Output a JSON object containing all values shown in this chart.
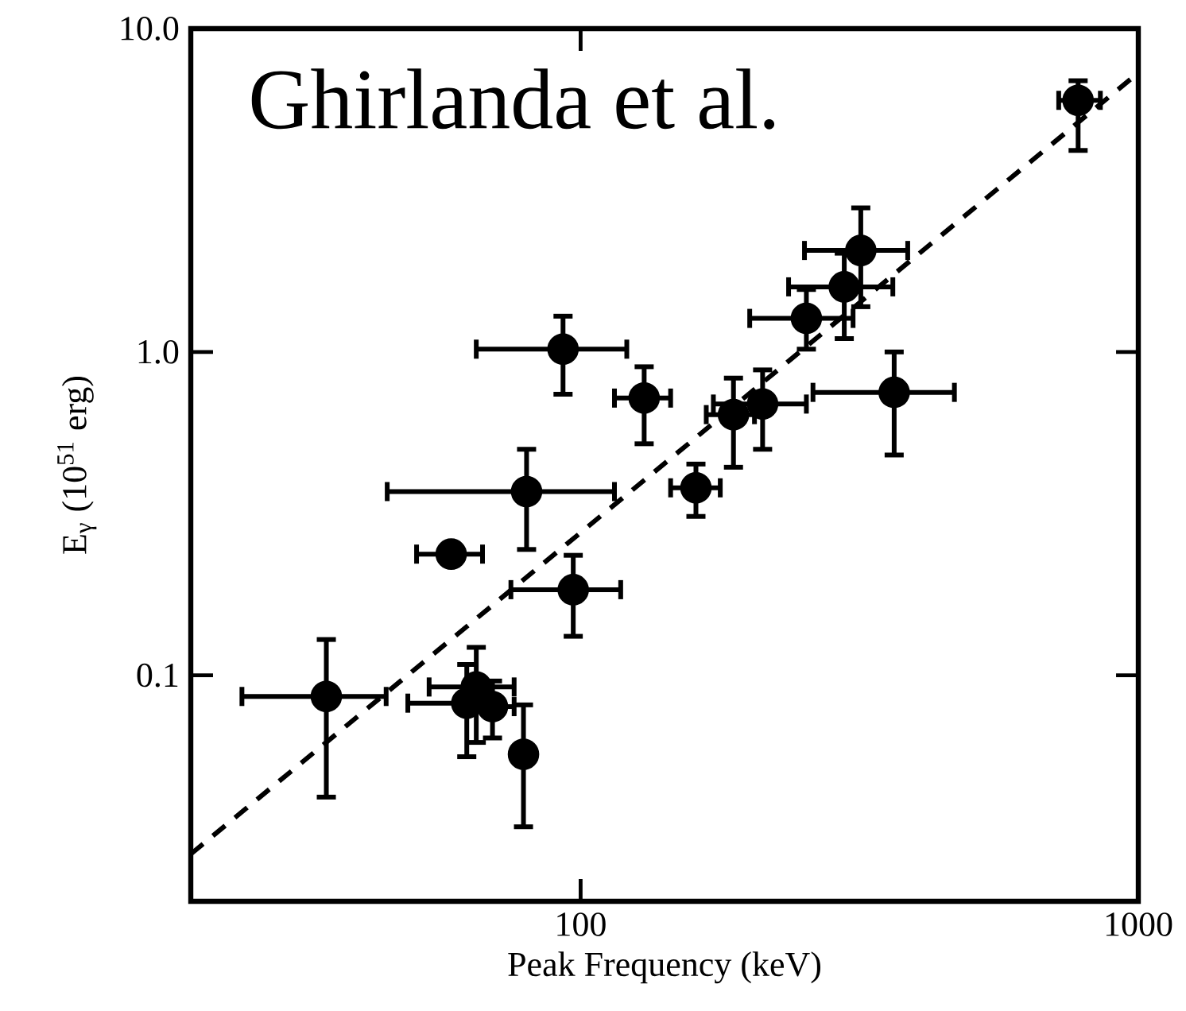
{
  "chart_data": {
    "type": "scatter",
    "xlabel": "Peak Frequency (keV)",
    "ylabel": "E$_{γ}$ (10$^{51}$ erg)",
    "annotations": [
      "Ghirlanda et al."
    ],
    "log": "xy",
    "xlim": [
      20,
      1000
    ],
    "ylim": [
      0.02,
      10
    ],
    "xticks": [
      100,
      1000
    ],
    "yticks": [
      {
        "value": 0.1,
        "label": "0.1"
      },
      {
        "value": 1,
        "label": "1.0"
      },
      {
        "value": 10,
        "label": "10.0"
      }
    ],
    "series": [
      {
        "type": "scatter",
        "color": "#000000",
        "marker": "circle",
        "x": [
          780,
          318,
          297,
          254,
          93,
          130,
          188,
          212,
          365,
          161,
          80,
          58.6,
          97,
          35,
          62.5,
          65,
          69.5,
          79
        ],
        "values": [
          6.0,
          2.06,
          1.59,
          1.27,
          1.02,
          0.72,
          0.64,
          0.69,
          0.75,
          0.38,
          0.37,
          0.237,
          0.184,
          0.086,
          0.082,
          0.092,
          0.08,
          0.057
        ],
        "errors": [
          [
            4.2,
            6.9
          ],
          [
            1.38,
            2.79
          ],
          [
            1.1,
            2.02
          ],
          [
            1.02,
            1.56
          ],
          [
            0.74,
            1.29
          ],
          [
            0.52,
            0.9
          ],
          [
            0.44,
            0.83
          ],
          [
            0.5,
            0.88
          ],
          [
            0.48,
            1.0
          ],
          [
            0.31,
            0.45
          ],
          [
            0.245,
            0.5
          ],
          null,
          [
            0.132,
            0.235
          ],
          [
            0.042,
            0.129
          ],
          [
            0.056,
            0.108
          ],
          [
            0.062,
            0.122
          ],
          [
            0.064,
            0.096
          ],
          [
            0.034,
            0.081
          ]
        ],
        "xerrors": [
          [
            720,
            855
          ],
          [
            252,
            386
          ],
          [
            236,
            363
          ],
          [
            201,
            308
          ],
          [
            65,
            121
          ],
          [
            115,
            145
          ],
          [
            168,
            205
          ],
          [
            173,
            254
          ],
          [
            261,
            468
          ],
          [
            145,
            178
          ],
          [
            45,
            115
          ],
          [
            50.8,
            66.7
          ],
          [
            75,
            118
          ],
          [
            24.7,
            44.8
          ],
          [
            49,
            62.5
          ],
          [
            53.5,
            76
          ],
          [
            69.5,
            76
          ],
          null
        ]
      },
      {
        "type": "line",
        "color": "#000000",
        "marker": "none",
        "line_style": "dashed",
        "x": [
          20,
          1000
        ],
        "values": [
          0.028,
          7.3
        ]
      }
    ]
  }
}
